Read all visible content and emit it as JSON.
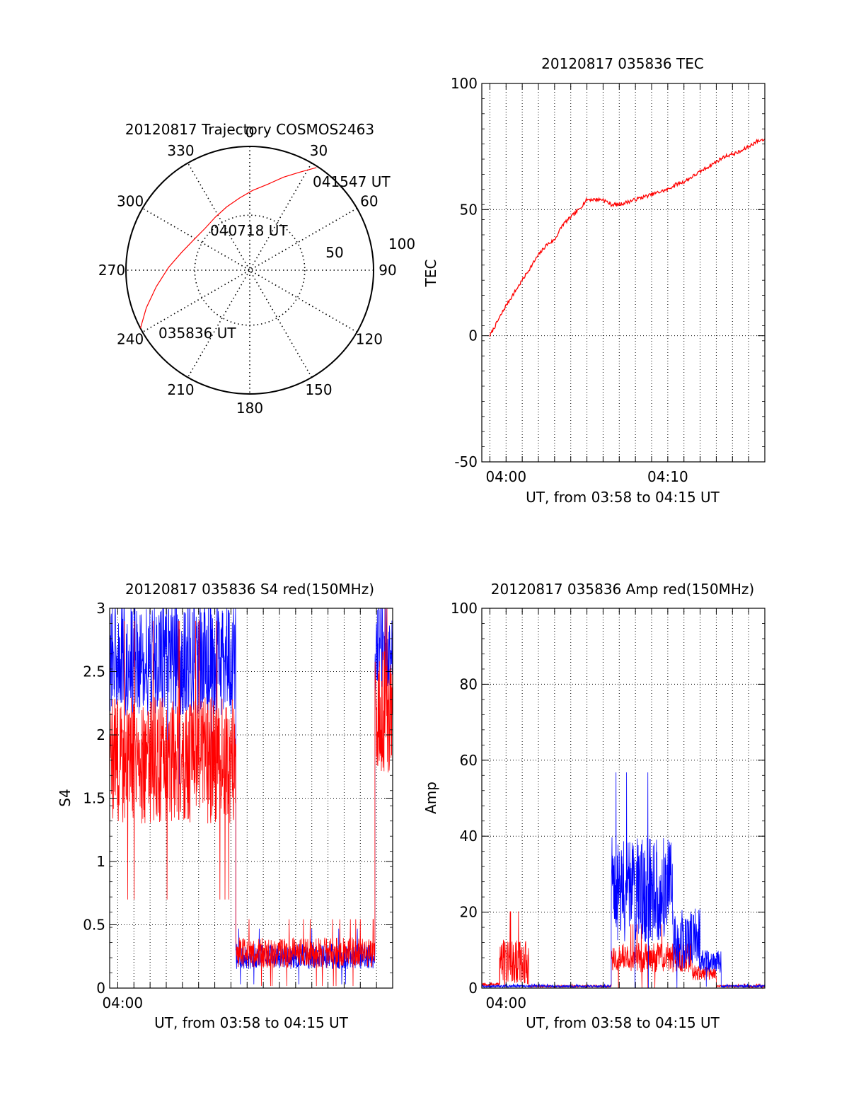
{
  "colors": {
    "red": "#ff0000",
    "blue": "#0000ff",
    "axis": "#000000",
    "grid": "#000000"
  },
  "chart_data": [
    {
      "id": "polar",
      "type": "scatter",
      "title": "20120817 Trajectory COSMOS2463",
      "azimuth_labels": [
        "0",
        "30",
        "60",
        "90",
        "120",
        "150",
        "180",
        "210",
        "240",
        "270",
        "300",
        "330"
      ],
      "radial_labels": [
        "50",
        "100"
      ],
      "elevation_rings": [
        50,
        0
      ],
      "track_red": [
        {
          "az": 242.0,
          "el": 0
        },
        {
          "az": 250.0,
          "el": 10
        },
        {
          "az": 260.0,
          "el": 21
        },
        {
          "az": 272.0,
          "el": 31
        },
        {
          "az": 285.0,
          "el": 39
        },
        {
          "az": 300.0,
          "el": 44
        },
        {
          "az": 313.0,
          "el": 45.5
        },
        {
          "az": 327.0,
          "el": 44
        },
        {
          "az": 340.0,
          "el": 41
        },
        {
          "az": 352.0,
          "el": 37
        },
        {
          "az": 2.0,
          "el": 32
        },
        {
          "az": 12.0,
          "el": 26
        },
        {
          "az": 20.0,
          "el": 18
        },
        {
          "az": 27.0,
          "el": 10
        },
        {
          "az": 33.0,
          "el": 1
        }
      ],
      "annotations": [
        {
          "text": "041547 UT",
          "az": 33,
          "el": 1
        },
        {
          "text": "040718 UT",
          "az": 336,
          "el": 53
        },
        {
          "text": "035836 UT",
          "az": 240,
          "el": 3
        }
      ]
    },
    {
      "id": "tec",
      "type": "line",
      "title": "20120817 035836 TEC",
      "ylabel": "TEC",
      "xlabel": "UT, from 03:58 to 04:15 UT",
      "xlim": [
        3.5,
        21.0
      ],
      "ylim": [
        -50,
        100
      ],
      "yticks": [
        -50,
        0,
        50,
        100
      ],
      "xticks": [
        {
          "x": 5,
          "label": "04:00"
        },
        {
          "x": 15,
          "label": "04:10"
        }
      ],
      "grid": true,
      "series": [
        {
          "color": "red",
          "x": [
            4.0,
            4.5,
            5.0,
            5.5,
            6.0,
            6.5,
            7.0,
            7.5,
            8.0,
            8.5,
            9.0,
            9.5,
            10.0,
            10.5,
            11.0,
            11.5,
            12.0,
            12.5,
            13.0,
            13.5,
            14.0,
            14.5,
            15.0,
            15.5,
            16.0,
            16.5,
            17.0,
            17.5,
            18.0,
            18.5,
            19.0,
            19.5,
            20.0,
            20.5,
            21.0
          ],
          "y": [
            0,
            6,
            12,
            17,
            22,
            27,
            32,
            36,
            38,
            44,
            47,
            50,
            54,
            54,
            54,
            52,
            52,
            53,
            54,
            55,
            56,
            57,
            58,
            60,
            61,
            63,
            65,
            67,
            69,
            71,
            72,
            73,
            75,
            77,
            78
          ]
        }
      ]
    },
    {
      "id": "s4",
      "type": "line",
      "title": "20120817 035836 S4 red(150MHz)",
      "ylabel": "S4",
      "xlabel": "UT, from 03:58 to 04:15 UT",
      "xlim": [
        3.5,
        21.0
      ],
      "ylim": [
        0,
        3
      ],
      "yticks": [
        "0",
        "0.5",
        "1",
        "1.5",
        "2",
        "2.5",
        "3"
      ],
      "xticks": [
        {
          "x": 4.3,
          "label": "04:00"
        }
      ],
      "grid": true,
      "series": [
        {
          "color": "blue",
          "segments": [
            {
              "x0": 3.5,
              "x1": 11.3,
              "center": 2.6,
              "spread": 0.45
            },
            {
              "x0": 11.3,
              "x1": 19.9,
              "center": 0.25,
              "spread": 0.1
            },
            {
              "x0": 19.9,
              "x1": 21.0,
              "center": 2.7,
              "spread": 0.35
            }
          ]
        },
        {
          "color": "red",
          "segments": [
            {
              "x0": 3.5,
              "x1": 11.3,
              "center": 1.8,
              "spread": 0.5
            },
            {
              "x0": 11.3,
              "x1": 19.9,
              "center": 0.28,
              "spread": 0.12
            },
            {
              "x0": 19.9,
              "x1": 21.0,
              "center": 2.2,
              "spread": 0.5
            }
          ]
        }
      ]
    },
    {
      "id": "amp",
      "type": "line",
      "title": "20120817 035836 Amp red(150MHz)",
      "ylabel": "Amp",
      "xlabel": "UT, from 03:58 to 04:15 UT",
      "xlim": [
        3.5,
        21.0
      ],
      "ylim": [
        0,
        100
      ],
      "yticks": [
        0,
        20,
        40,
        60,
        80,
        100
      ],
      "xticks": [
        {
          "x": 5,
          "label": "04:00"
        }
      ],
      "grid": true,
      "series": [
        {
          "color": "red",
          "segments": [
            {
              "x0": 3.5,
              "x1": 4.6,
              "center": 1,
              "spread": 0.5
            },
            {
              "x0": 4.6,
              "x1": 6.4,
              "center": 7,
              "spread": 6
            },
            {
              "x0": 6.4,
              "x1": 11.5,
              "center": 0.5,
              "spread": 0.3
            },
            {
              "x0": 11.5,
              "x1": 16.5,
              "center": 8,
              "spread": 4
            },
            {
              "x0": 16.5,
              "x1": 18.0,
              "center": 4,
              "spread": 2
            },
            {
              "x0": 18.0,
              "x1": 21.0,
              "center": 0.5,
              "spread": 0.3
            }
          ]
        },
        {
          "color": "blue",
          "segments": [
            {
              "x0": 3.5,
              "x1": 11.5,
              "center": 0.5,
              "spread": 0.3
            },
            {
              "x0": 11.5,
              "x1": 15.3,
              "center": 26,
              "spread": 14
            },
            {
              "x0": 15.3,
              "x1": 17.0,
              "center": 13,
              "spread": 8
            },
            {
              "x0": 17.0,
              "x1": 18.3,
              "center": 7,
              "spread": 3
            },
            {
              "x0": 18.3,
              "x1": 21.0,
              "center": 0.5,
              "spread": 0.3
            }
          ]
        }
      ]
    }
  ]
}
